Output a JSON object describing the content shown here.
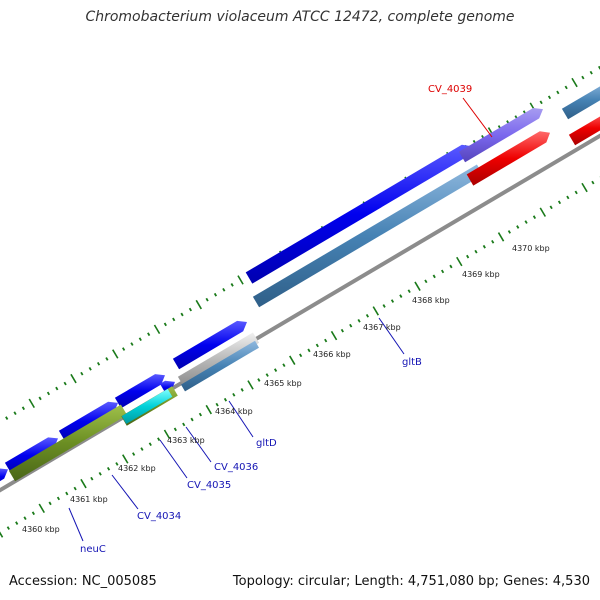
{
  "title": "Chromobacterium violaceum ATCC 12472, complete genome",
  "footer": {
    "accession": "Accession: NC_005085",
    "summary": "Topology: circular; Length: 4,751,080 bp; Genes: 4,530"
  },
  "colors": {
    "backbone": "#8c8c8c",
    "cds_forward": "#0000ee",
    "cds_reverse": "#4682b4",
    "tick": "#1a7a1a",
    "label_blue": "#1414b4",
    "label_red": "#dd0000"
  },
  "kbp_labels": [
    "4360 kbp",
    "4361 kbp",
    "4362 kbp",
    "4363 kbp",
    "4364 kbp",
    "4365 kbp",
    "4366 kbp",
    "4367 kbp",
    "4368 kbp",
    "4369 kbp",
    "4370 kbp"
  ],
  "gene_labels": {
    "neuC": "neuC",
    "cv4034": "CV_4034",
    "cv4035": "CV_4035",
    "cv4036": "CV_4036",
    "gltD": "gltD",
    "gltB": "gltB",
    "cv4039": "CV_4039"
  }
}
